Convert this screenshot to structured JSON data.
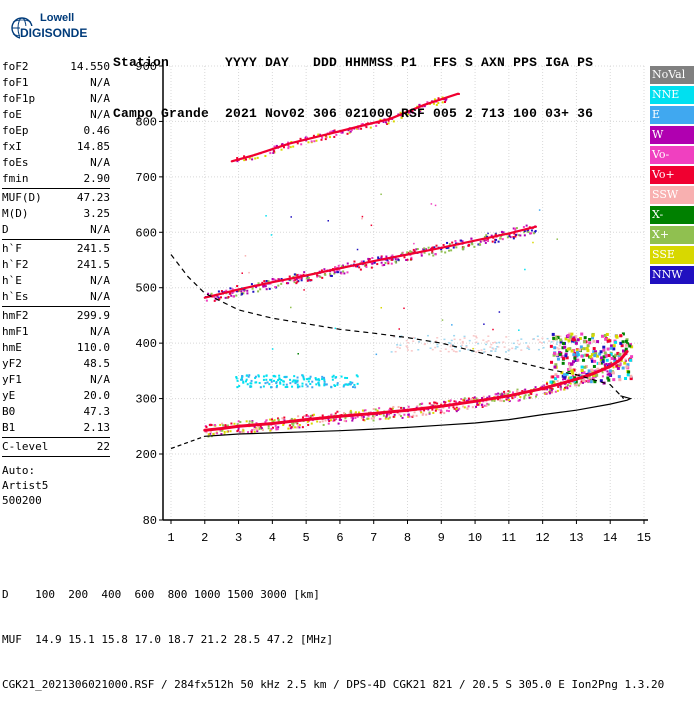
{
  "logo": {
    "line1": "Lowell",
    "line2": "DIGISONDE"
  },
  "header": {
    "line1": "Station       YYYY DAY   DDD HHMMSS P1  FFS S AXN PPS IGA PS",
    "line2": "Campo Grande  2021 Nov02 306 021000 RSF 005 2 713 100 03+ 36"
  },
  "params": {
    "group1": [
      {
        "name": "foF2",
        "value": "14.550"
      },
      {
        "name": "foF1",
        "value": "N/A"
      },
      {
        "name": "foF1p",
        "value": "N/A"
      },
      {
        "name": "foE",
        "value": "N/A"
      },
      {
        "name": "foEp",
        "value": "0.46"
      },
      {
        "name": "fxI",
        "value": "14.85"
      },
      {
        "name": "foEs",
        "value": "N/A"
      },
      {
        "name": "fmin",
        "value": "2.90"
      }
    ],
    "group2": [
      {
        "name": "MUF(D)",
        "value": "47.23"
      },
      {
        "name": "M(D)",
        "value": "3.25"
      },
      {
        "name": "D",
        "value": "N/A"
      }
    ],
    "group3": [
      {
        "name": "h`F",
        "value": "241.5"
      },
      {
        "name": "h`F2",
        "value": "241.5"
      },
      {
        "name": "h`E",
        "value": "N/A"
      },
      {
        "name": "h`Es",
        "value": "N/A"
      }
    ],
    "group4": [
      {
        "name": "hmF2",
        "value": "299.9"
      },
      {
        "name": "hmF1",
        "value": "N/A"
      },
      {
        "name": "hmE",
        "value": "110.0"
      },
      {
        "name": "yF2",
        "value": "48.5"
      },
      {
        "name": "yF1",
        "value": "N/A"
      },
      {
        "name": "yE",
        "value": "20.0"
      },
      {
        "name": "B0",
        "value": "47.3"
      },
      {
        "name": "B1",
        "value": "2.13"
      }
    ],
    "group5": [
      {
        "name": "C-level",
        "value": "22"
      }
    ],
    "auto": [
      "Auto:",
      "Artist5",
      "500200"
    ]
  },
  "legend": [
    {
      "label": "NoVal",
      "color": "#808080"
    },
    {
      "label": "NNE",
      "color": "#00e0f0"
    },
    {
      "label": "E",
      "color": "#40a8f0"
    },
    {
      "label": "W",
      "color": "#b000b0"
    },
    {
      "label": "Vo-",
      "color": "#f040c0"
    },
    {
      "label": "Vo+",
      "color": "#f00030"
    },
    {
      "label": "SSW",
      "color": "#f8b0b0"
    },
    {
      "label": "X-",
      "color": "#008000"
    },
    {
      "label": "X+",
      "color": "#90c050"
    },
    {
      "label": "SSE",
      "color": "#d8d800"
    },
    {
      "label": "NNW",
      "color": "#2010c0"
    }
  ],
  "footer": {
    "line1": "D    100  200  400  600  800 1000 1500 3000 [km]",
    "line2": "MUF  14.9 15.1 15.8 17.0 18.7 21.2 28.5 47.2 [MHz]",
    "line3": "CGK21_2021306021000.RSF / 284fx512h 50 kHz 2.5 km / DPS-4D CGK21 821 / 20.5 S 305.0 E Ion2Png 1.3.20"
  },
  "chart_data": {
    "type": "scatter",
    "xlim": [
      1,
      15
    ],
    "ylim": [
      80,
      900
    ],
    "x_ticks": [
      1,
      2,
      3,
      4,
      5,
      6,
      7,
      8,
      9,
      10,
      11,
      12,
      13,
      14,
      15
    ],
    "y_ticks": [
      80,
      200,
      300,
      400,
      500,
      600,
      700,
      800,
      900
    ],
    "grid": true,
    "legend_position": "right",
    "series": [
      {
        "name": "Vo+",
        "color": "#f00030",
        "x": [
          2.0,
          2.5,
          3.0,
          4.0,
          5.0,
          6.0,
          7.0,
          8.0,
          9.0,
          10.0,
          11.0,
          12.0,
          13.0,
          13.5,
          14.0,
          14.3,
          14.5
        ],
        "y": [
          243,
          246,
          250,
          255,
          262,
          268,
          273,
          279,
          286,
          295,
          305,
          318,
          335,
          345,
          358,
          370,
          385
        ]
      },
      {
        "name": "Vo+",
        "color": "#f00030",
        "x": [
          2.0,
          3.0,
          4.0,
          5.0,
          6.0,
          7.0,
          8.0,
          9.0,
          10.0,
          11.0,
          11.8
        ],
        "y": [
          482,
          497,
          510,
          522,
          535,
          548,
          560,
          572,
          585,
          598,
          610
        ]
      },
      {
        "name": "Vo+",
        "color": "#f00030",
        "x": [
          2.8,
          3.5,
          4.5,
          5.5,
          6.5,
          7.5,
          8.5,
          9.5
        ],
        "y": [
          728,
          740,
          760,
          775,
          790,
          805,
          830,
          850
        ]
      }
    ],
    "true_height_profile": {
      "x": [
        2.0,
        3.0,
        4.0,
        5.0,
        6.0,
        7.0,
        8.0,
        9.0,
        10.0,
        11.0,
        12.0,
        13.0,
        14.0,
        14.5,
        14.6
      ],
      "y": [
        232,
        236,
        238,
        240,
        242,
        245,
        248,
        252,
        256,
        262,
        271,
        279,
        290,
        297,
        300
      ]
    },
    "mode_curve": {
      "x": [
        1.0,
        1.5,
        2.0,
        3.0,
        4.0,
        5.0,
        6.0,
        7.0,
        8.0,
        9.0,
        10.0,
        11.0,
        12.0,
        13.0,
        14.0,
        14.4
      ],
      "y": [
        560,
        520,
        490,
        460,
        445,
        435,
        425,
        418,
        410,
        400,
        385,
        370,
        355,
        343,
        325,
        300
      ]
    }
  }
}
